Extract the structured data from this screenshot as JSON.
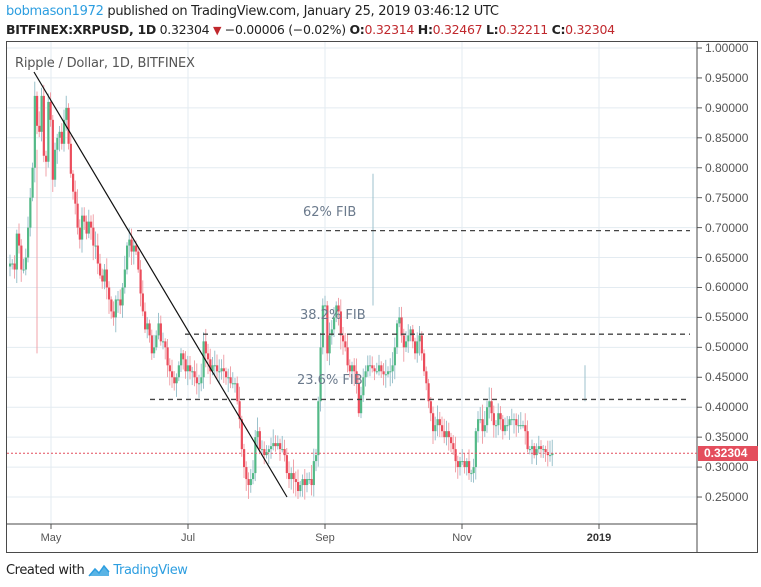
{
  "header": {
    "author": "bobmason1972",
    "published_text": " published on TradingView.com, January 25, 2019 03:46:12 UTC",
    "symbol": "BITFINEX:XRPUSD, 1D",
    "last_price": "0.32304",
    "change_icon": "down-triangle-icon",
    "change": "−0.00006 (−0.02%)",
    "open_label": "O:",
    "open": "0.32314",
    "high_label": "H:",
    "high": "0.32467",
    "low_label": "L:",
    "low": "0.32211",
    "close_label": "C:",
    "close": "0.32304"
  },
  "chart": {
    "title": "Ripple / Dollar, 1D, BITFINEX",
    "price_badge": "0.32304",
    "colors": {
      "up": "#53b987",
      "down": "#eb4d5c",
      "wick_up": "#9cc2cc",
      "wick_down": "#f0a3aa",
      "grid": "#e3ebf1",
      "price_line": "#e44e5d",
      "badge": "#e44e5d",
      "fib_line": "#444444"
    },
    "fib_labels": [
      {
        "label": "62% FIB",
        "price": 0.695
      },
      {
        "label": "38.2% FIB",
        "price": 0.522
      },
      {
        "label": "23.6% FIB",
        "price": 0.413
      }
    ]
  },
  "footer": {
    "created_with": "Created with",
    "brand": "TradingView",
    "logo_icon": "tradingview-logo-icon"
  },
  "chart_data": {
    "type": "candlestick",
    "title": "Ripple / Dollar, 1D, BITFINEX",
    "symbol": "BITFINEX:XRPUSD",
    "interval": "1D",
    "xlabel": "",
    "ylabel": "",
    "x_ticks": [
      "May",
      "Jul",
      "Sep",
      "Nov",
      "2019"
    ],
    "y_ticks": [
      "1.00000",
      "0.95000",
      "0.90000",
      "0.85000",
      "0.80000",
      "0.75000",
      "0.70000",
      "0.65000",
      "0.60000",
      "0.55000",
      "0.50000",
      "0.45000",
      "0.40000",
      "0.35000",
      "0.30000",
      "0.25000"
    ],
    "ylim": [
      0.22,
      1.01
    ],
    "grid": true,
    "last_price": 0.32304,
    "fib_levels": [
      {
        "label": "62% FIB",
        "value": 0.695
      },
      {
        "label": "38.2% FIB",
        "value": 0.522
      },
      {
        "label": "23.6% FIB",
        "value": 0.413
      }
    ],
    "trendline": {
      "from": {
        "date": "late Apr 2018",
        "value": 0.965
      },
      "to": {
        "date": "mid Aug 2018",
        "value": 0.25
      }
    },
    "approx_daily_closes": [
      0.64,
      0.64,
      0.63,
      0.69,
      0.67,
      0.63,
      0.63,
      0.65,
      0.7,
      0.75,
      0.8,
      0.92,
      0.87,
      0.86,
      0.92,
      0.82,
      0.81,
      0.91,
      0.88,
      0.78,
      0.83,
      0.85,
      0.86,
      0.84,
      0.88,
      0.9,
      0.84,
      0.79,
      0.76,
      0.74,
      0.7,
      0.68,
      0.72,
      0.71,
      0.69,
      0.71,
      0.7,
      0.67,
      0.67,
      0.64,
      0.62,
      0.61,
      0.63,
      0.6,
      0.58,
      0.56,
      0.55,
      0.58,
      0.58,
      0.57,
      0.6,
      0.63,
      0.67,
      0.68,
      0.66,
      0.67,
      0.66,
      0.63,
      0.59,
      0.56,
      0.53,
      0.54,
      0.52,
      0.49,
      0.5,
      0.52,
      0.54,
      0.51,
      0.51,
      0.5,
      0.47,
      0.46,
      0.45,
      0.44,
      0.45,
      0.47,
      0.49,
      0.48,
      0.46,
      0.47,
      0.46,
      0.46,
      0.45,
      0.44,
      0.44,
      0.45,
      0.51,
      0.49,
      0.48,
      0.46,
      0.47,
      0.47,
      0.46,
      0.46,
      0.465,
      0.46,
      0.45,
      0.45,
      0.44,
      0.44,
      0.44,
      0.41,
      0.38,
      0.33,
      0.3,
      0.28,
      0.27,
      0.28,
      0.29,
      0.35,
      0.36,
      0.33,
      0.33,
      0.32,
      0.325,
      0.33,
      0.335,
      0.34,
      0.335,
      0.34,
      0.33,
      0.33,
      0.32,
      0.29,
      0.28,
      0.29,
      0.28,
      0.275,
      0.26,
      0.27,
      0.28,
      0.27,
      0.28,
      0.28,
      0.27,
      0.31,
      0.32,
      0.41,
      0.5,
      0.57,
      0.57,
      0.49,
      0.52,
      0.53,
      0.55,
      0.57,
      0.56,
      0.52,
      0.51,
      0.5,
      0.47,
      0.46,
      0.47,
      0.46,
      0.44,
      0.39,
      0.42,
      0.45,
      0.46,
      0.47,
      0.47,
      0.465,
      0.46,
      0.46,
      0.47,
      0.46,
      0.455,
      0.455,
      0.46,
      0.46,
      0.47,
      0.5,
      0.54,
      0.55,
      0.52,
      0.5,
      0.51,
      0.52,
      0.53,
      0.51,
      0.49,
      0.51,
      0.52,
      0.49,
      0.46,
      0.44,
      0.41,
      0.39,
      0.36,
      0.37,
      0.38,
      0.37,
      0.36,
      0.35,
      0.36,
      0.35,
      0.34,
      0.33,
      0.31,
      0.3,
      0.31,
      0.31,
      0.3,
      0.31,
      0.29,
      0.29,
      0.3,
      0.36,
      0.38,
      0.38,
      0.36,
      0.37,
      0.4,
      0.41,
      0.39,
      0.37,
      0.37,
      0.39,
      0.38,
      0.36,
      0.37,
      0.37,
      0.38,
      0.38,
      0.38,
      0.37,
      0.37,
      0.37,
      0.37,
      0.36,
      0.33,
      0.33,
      0.335,
      0.32,
      0.33,
      0.335,
      0.33,
      0.33,
      0.325,
      0.32,
      0.32,
      0.323
    ]
  }
}
